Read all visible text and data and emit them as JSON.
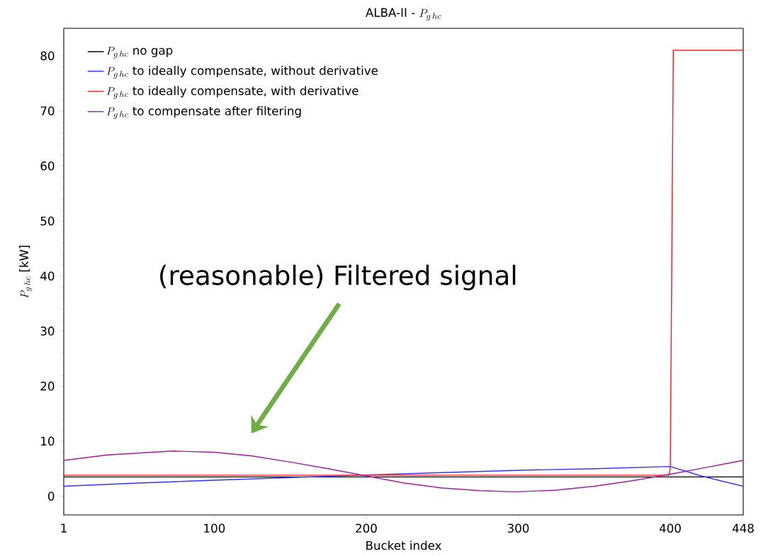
{
  "chart_data": {
    "type": "line",
    "title": "\\textrm{ALBA-II - }P_{g\\,hc}",
    "xlabel": "Bucket index",
    "ylabel": "P_{g\\,hc}\\ \\textrm{[kW]}",
    "xlim": [
      1,
      448
    ],
    "ylim": [
      -3.4,
      85
    ],
    "xticks": [
      1,
      100,
      200,
      300,
      400,
      448
    ],
    "yticks": [
      0,
      10,
      20,
      30,
      40,
      50,
      60,
      70,
      80
    ],
    "legend": "top left",
    "grid": false,
    "series": [
      {
        "name": "P_{g\\,hc}\\ \\textrm{no gap}",
        "color": "#000000",
        "x": [
          1,
          448
        ],
        "values": [
          3.5,
          3.5
        ]
      },
      {
        "name": "P_{g\\,hc}\\ \\textrm{to ideally compensate, without derivative}",
        "color": "#3333ff",
        "x": [
          1,
          50,
          100,
          150,
          250,
          300,
          350,
          400,
          420,
          448
        ],
        "values": [
          1.8,
          2.4,
          2.9,
          3.4,
          4.3,
          4.7,
          5.0,
          5.4,
          3.7,
          1.8
        ]
      },
      {
        "name": "P_{g\\,hc}\\ \\textrm{to ideally compensate, with derivative}",
        "color": "#ff2020",
        "x": [
          1,
          399,
          400,
          402,
          448
        ],
        "values": [
          3.8,
          3.8,
          5.0,
          81,
          81
        ]
      },
      {
        "name": "P_{g\\,hc}\\ \\textrm{to compensate after filtering}",
        "color": "#a020a0",
        "x": [
          1,
          30,
          73,
          100,
          125,
          150,
          175,
          200,
          225,
          250,
          275,
          298,
          325,
          350,
          375,
          400,
          425,
          448
        ],
        "values": [
          6.5,
          7.5,
          8.2,
          8.0,
          7.3,
          6.2,
          5.0,
          3.7,
          2.4,
          1.5,
          1.0,
          0.8,
          1.1,
          1.8,
          2.8,
          4.0,
          5.3,
          6.5
        ]
      }
    ],
    "annotations": [
      "(reasonable) Filtered signal"
    ]
  }
}
